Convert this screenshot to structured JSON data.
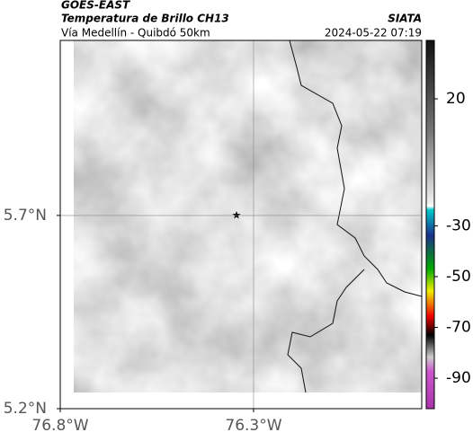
{
  "header": {
    "satellite": "GOES-EAST",
    "product": "Temperatura de Brillo CH13",
    "region": "Vía Medellín - Quibdó 50km",
    "source": "SIATA",
    "datetime": "2024-05-22 07:19"
  },
  "map": {
    "xlim": [
      -76.8,
      -75.865
    ],
    "ylim": [
      5.2,
      6.153
    ],
    "xticks": [
      {
        "value": -76.8,
        "label": "76.8°W"
      },
      {
        "value": -76.3,
        "label": "76.3°W"
      }
    ],
    "yticks": [
      {
        "value": 5.2,
        "label": "5.2°N"
      },
      {
        "value": 5.7,
        "label": "5.7°N"
      }
    ]
  },
  "colorbar": {
    "lim": [
      -102,
      43
    ],
    "ticks": [
      20,
      -30,
      -50,
      -70,
      -90
    ]
  }
}
